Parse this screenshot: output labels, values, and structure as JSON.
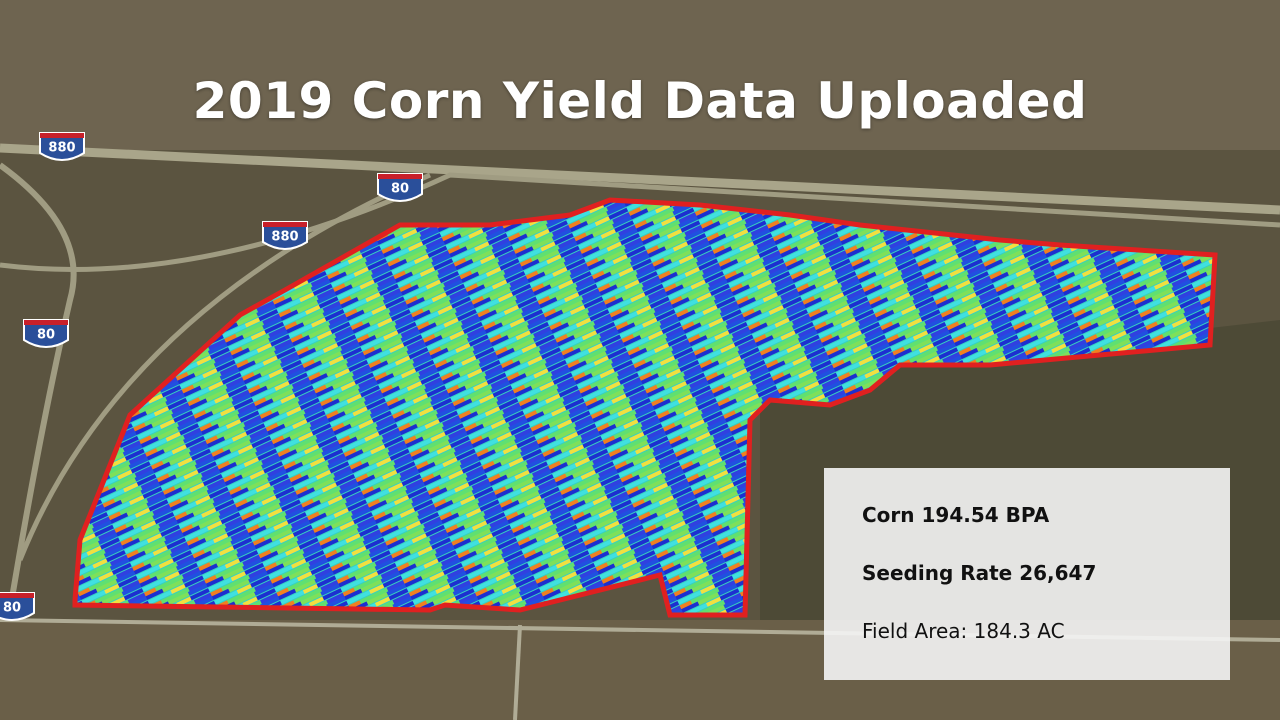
{
  "header": {
    "title": "2019 Corn Yield Data Uploaded"
  },
  "shields": [
    "880",
    "80",
    "880",
    "80",
    "80"
  ],
  "info": {
    "lines": [
      "Corn 194.54 BPA",
      "Seeding Rate 26,647",
      "Field Area: 184.3 AC"
    ]
  }
}
